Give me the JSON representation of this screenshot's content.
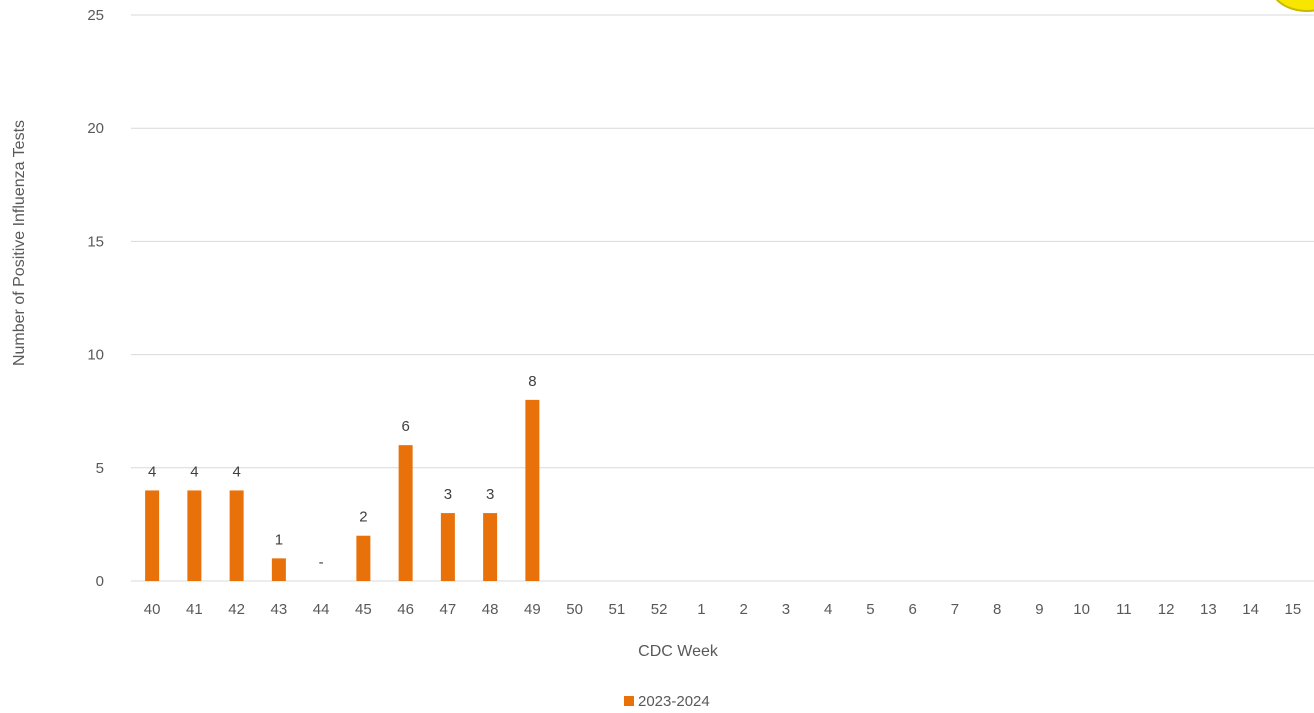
{
  "chart_data": {
    "type": "bar",
    "title": "",
    "xlabel": "CDC Week",
    "ylabel": "Number of Positive Influenza Tests",
    "ylim": [
      0,
      25
    ],
    "yticks": [
      "0",
      "5",
      "10",
      "15",
      "20",
      "25"
    ],
    "grid": true,
    "legend_position": "bottom",
    "categories": [
      "40",
      "41",
      "42",
      "43",
      "44",
      "45",
      "46",
      "47",
      "48",
      "49",
      "50",
      "51",
      "52",
      "1",
      "2",
      "3",
      "4",
      "5",
      "6",
      "7",
      "8",
      "9",
      "10",
      "11",
      "12",
      "13",
      "14",
      "15"
    ],
    "series": [
      {
        "name": "2023-2024",
        "color": "#e8710a",
        "values": [
          4,
          4,
          4,
          1,
          0,
          2,
          6,
          3,
          3,
          8,
          null,
          null,
          null,
          null,
          null,
          null,
          null,
          null,
          null,
          null,
          null,
          null,
          null,
          null,
          null,
          null,
          null,
          null
        ],
        "data_labels": [
          "4",
          "4",
          "4",
          "1",
          "-",
          "2",
          "6",
          "3",
          "3",
          "8",
          "",
          "",
          "",
          "",
          "",
          "",
          "",
          "",
          "",
          "",
          "",
          "",
          "",
          "",
          "",
          "",
          "",
          ""
        ]
      }
    ]
  }
}
